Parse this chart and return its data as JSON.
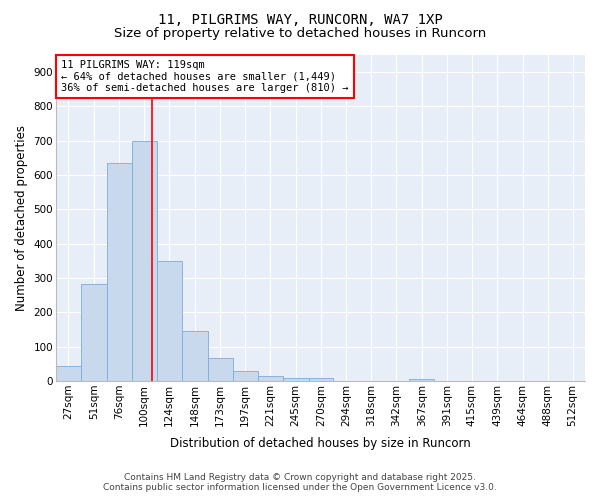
{
  "title_line1": "11, PILGRIMS WAY, RUNCORN, WA7 1XP",
  "title_line2": "Size of property relative to detached houses in Runcorn",
  "xlabel": "Distribution of detached houses by size in Runcorn",
  "ylabel": "Number of detached properties",
  "bar_color": "#c8d9ee",
  "bar_edge_color": "#7aaddb",
  "vline_color": "red",
  "vline_x": 119,
  "categories": [
    "27sqm",
    "51sqm",
    "76sqm",
    "100sqm",
    "124sqm",
    "148sqm",
    "173sqm",
    "197sqm",
    "221sqm",
    "245sqm",
    "270sqm",
    "294sqm",
    "318sqm",
    "342sqm",
    "367sqm",
    "391sqm",
    "415sqm",
    "439sqm",
    "464sqm",
    "488sqm",
    "512sqm"
  ],
  "bin_edges": [
    27,
    51,
    76,
    100,
    124,
    148,
    173,
    197,
    221,
    245,
    270,
    294,
    318,
    342,
    367,
    391,
    415,
    439,
    464,
    488,
    512,
    536
  ],
  "values": [
    43,
    283,
    635,
    700,
    350,
    147,
    67,
    28,
    15,
    10,
    9,
    0,
    0,
    0,
    7,
    0,
    0,
    0,
    0,
    0,
    0
  ],
  "ylim": [
    0,
    950
  ],
  "yticks": [
    0,
    100,
    200,
    300,
    400,
    500,
    600,
    700,
    800,
    900
  ],
  "annotation_box_text": "11 PILGRIMS WAY: 119sqm\n← 64% of detached houses are smaller (1,449)\n36% of semi-detached houses are larger (810) →",
  "footer_line1": "Contains HM Land Registry data © Crown copyright and database right 2025.",
  "footer_line2": "Contains public sector information licensed under the Open Government Licence v3.0.",
  "background_color": "#ffffff",
  "plot_bg_color": "#e8eef8",
  "grid_color": "#ffffff",
  "title_fontsize": 10,
  "subtitle_fontsize": 9.5,
  "axis_label_fontsize": 8.5,
  "tick_fontsize": 7.5,
  "annotation_fontsize": 7.5,
  "footer_fontsize": 6.5
}
